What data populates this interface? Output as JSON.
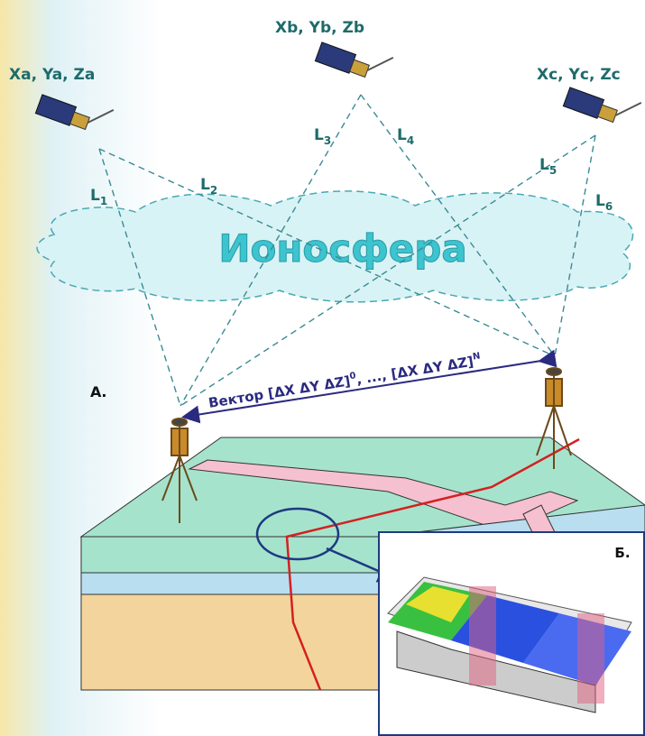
{
  "satellites": [
    {
      "label": "Xa, Ya, Za"
    },
    {
      "label": "Xb, Yb, Zb"
    },
    {
      "label": "Xc, Yc, Zc"
    }
  ],
  "ranges": [
    {
      "base": "L",
      "sub": "1"
    },
    {
      "base": "L",
      "sub": "2"
    },
    {
      "base": "L",
      "sub": "3"
    },
    {
      "base": "L",
      "sub": "4"
    },
    {
      "base": "L",
      "sub": "5"
    },
    {
      "base": "L",
      "sub": "6"
    }
  ],
  "ionosphere": "Ионосфера",
  "vector": {
    "start": "Вектор [ΔX ΔY ΔZ]",
    "sup_start": "0",
    "end": ", ..., [ΔX ΔY ΔZ]",
    "sup_end": "N"
  },
  "panel_a": "А.",
  "panel_b": "Б."
}
